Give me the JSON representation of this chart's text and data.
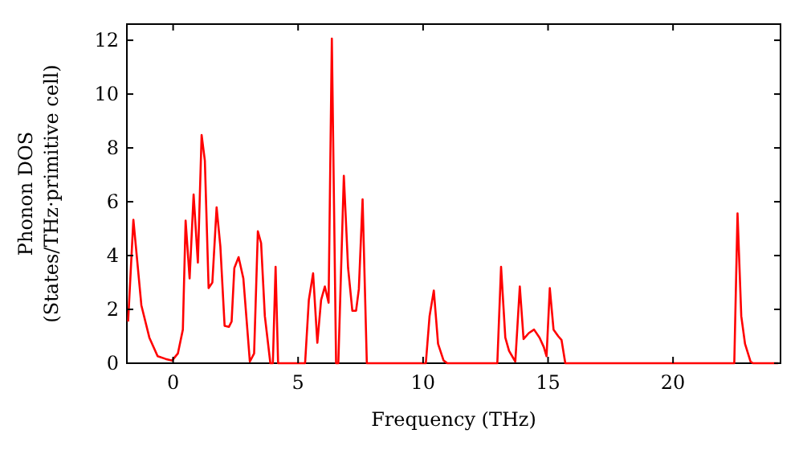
{
  "chart_data": {
    "type": "line",
    "xlabel": "Frequency (THz)",
    "ylabel": "Phonon DOS\n(States/THz·primitive cell)",
    "xlim": [
      -1.85,
      24.3
    ],
    "ylim": [
      0,
      12.6
    ],
    "xticks": [
      0,
      5,
      10,
      15,
      20
    ],
    "yticks": [
      0,
      2,
      4,
      6,
      8,
      10,
      12
    ],
    "grid": false,
    "line_style": "solid",
    "marker": "none",
    "series": [
      {
        "color": "#ff0000",
        "x": [
          -1.8,
          -1.59,
          -1.27,
          -0.95,
          -0.62,
          -0.3,
          -0.04,
          0.19,
          0.39,
          0.5,
          0.66,
          0.82,
          0.99,
          1.14,
          1.27,
          1.42,
          1.57,
          1.74,
          1.89,
          2.06,
          2.23,
          2.34,
          2.45,
          2.62,
          2.81,
          3.07,
          3.24,
          3.39,
          3.52,
          3.67,
          3.89,
          3.99,
          4.1,
          4.2,
          5.28,
          5.43,
          5.6,
          5.77,
          5.92,
          6.07,
          6.22,
          6.35,
          6.52,
          6.61,
          6.83,
          7.0,
          7.17,
          7.32,
          7.43,
          7.58,
          7.75,
          10.11,
          10.26,
          10.43,
          10.6,
          10.82,
          10.97,
          12.97,
          13.12,
          13.29,
          13.44,
          13.69,
          13.87,
          14.02,
          14.23,
          14.44,
          14.66,
          14.83,
          14.94,
          15.07,
          15.22,
          15.41,
          15.54,
          15.69,
          22.45,
          22.58,
          22.73,
          22.88,
          23.1,
          23.2,
          24.2
        ],
        "values": [
          1.55,
          5.33,
          2.15,
          0.95,
          0.26,
          0.16,
          0.1,
          0.36,
          1.25,
          5.3,
          3.15,
          6.27,
          3.74,
          8.48,
          7.52,
          2.79,
          3.0,
          5.79,
          4.34,
          1.39,
          1.35,
          1.55,
          3.54,
          3.94,
          3.15,
          0.06,
          0.36,
          4.9,
          4.46,
          1.75,
          0,
          0,
          3.58,
          0,
          0,
          2.35,
          3.34,
          0.76,
          2.35,
          2.85,
          2.25,
          12.06,
          0,
          0,
          6.96,
          3.54,
          1.95,
          1.95,
          2.75,
          6.09,
          0,
          0,
          1.75,
          2.7,
          0.72,
          0.1,
          0,
          0,
          3.58,
          0.95,
          0.46,
          0.06,
          2.85,
          0.9,
          1.12,
          1.25,
          0.95,
          0.6,
          0.26,
          2.79,
          1.25,
          1.0,
          0.86,
          0,
          0,
          5.57,
          1.75,
          0.72,
          0.06,
          0,
          0
        ]
      }
    ]
  }
}
